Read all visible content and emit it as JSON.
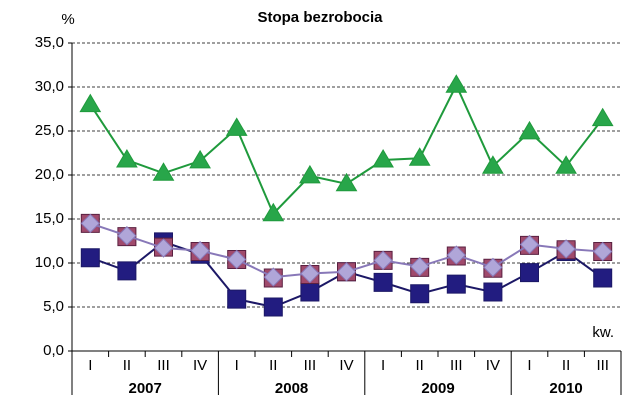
{
  "chart_data": {
    "type": "line",
    "title": "Stopa bezrobocia",
    "y_label": "%",
    "x_label": "kw.",
    "categories": [
      "I",
      "II",
      "III",
      "IV",
      "I",
      "II",
      "III",
      "IV",
      "I",
      "II",
      "III",
      "IV",
      "I",
      "II",
      "III"
    ],
    "x_groups": [
      "2007",
      "2008",
      "2009",
      "2010"
    ],
    "ylim": [
      0,
      35
    ],
    "yticks": [
      {
        "value": 0,
        "label": "0,0"
      },
      {
        "value": 5,
        "label": "5,0"
      },
      {
        "value": 10,
        "label": "10,0"
      },
      {
        "value": 15,
        "label": "15,0"
      },
      {
        "value": 20,
        "label": "20,0"
      },
      {
        "value": 25,
        "label": "25,0"
      },
      {
        "value": 30,
        "label": "30,0"
      },
      {
        "value": 35,
        "label": "35,0"
      }
    ],
    "grid": true,
    "series": [
      {
        "color": "#1f9a3c",
        "marker": "triangle",
        "marker_fill": "#28a64a",
        "line": true,
        "values": [
          28.0,
          21.7,
          20.2,
          21.6,
          25.3,
          15.6,
          19.9,
          19.0,
          21.7,
          21.9,
          30.2,
          21.0,
          24.9,
          21.0,
          26.4
        ]
      },
      {
        "color": "#1c1866",
        "marker": "square",
        "marker_fill": "#221c80",
        "line": true,
        "values": [
          10.6,
          9.1,
          12.4,
          11.0,
          5.9,
          5.0,
          6.7,
          9.0,
          7.8,
          6.5,
          7.6,
          6.7,
          8.9,
          11.3,
          8.3
        ]
      },
      {
        "color": "#5a2040",
        "marker": "square",
        "marker_fill": "#a04a6c",
        "line": false,
        "values": [
          14.5,
          13.0,
          11.8,
          11.3,
          10.4,
          8.3,
          8.7,
          9.0,
          10.3,
          9.5,
          10.8,
          9.4,
          12.0,
          11.5,
          11.3
        ]
      },
      {
        "color": "#8878b8",
        "marker": "diamond",
        "marker_fill": "#b0a6d8",
        "line": true,
        "values": [
          14.5,
          13.1,
          11.7,
          11.4,
          10.4,
          8.4,
          8.8,
          9.0,
          10.3,
          9.6,
          10.9,
          9.5,
          12.1,
          11.6,
          11.3
        ]
      }
    ]
  }
}
